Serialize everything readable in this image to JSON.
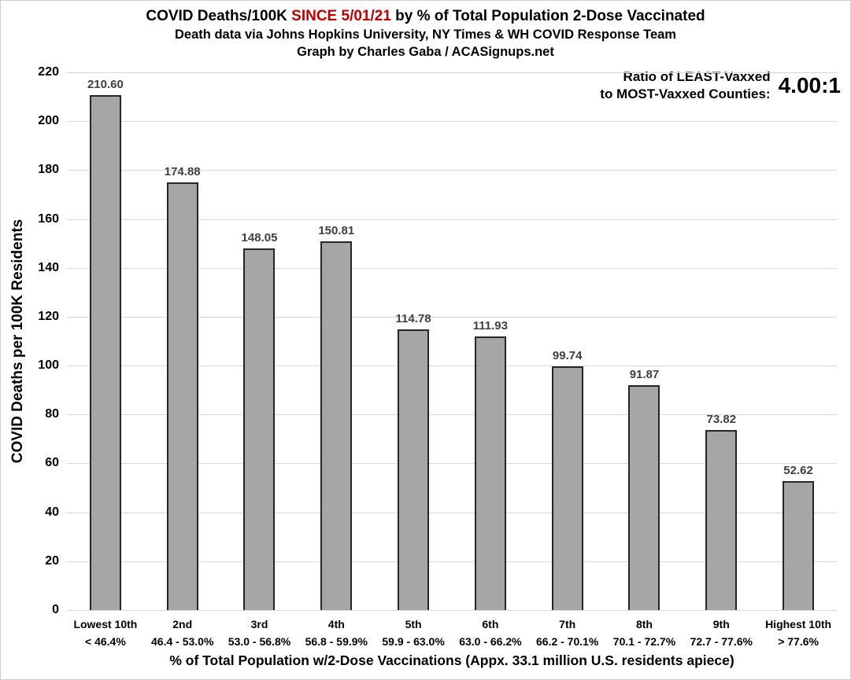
{
  "header": {
    "title_prefix": "COVID Deaths/100K ",
    "title_highlight": "SINCE 5/01/21",
    "title_suffix": " by % of Total Population 2-Dose Vaccinated",
    "subtitle1": "Death data via Johns Hopkins University, NY Times & WH COVID Response Team",
    "subtitle2": "Graph by Charles Gaba / ACASignups.net"
  },
  "ratio": {
    "label_line1": "Ratio of LEAST-Vaxxed",
    "label_line2": "to MOST-Vaxxed Counties:",
    "value": "4.00:1"
  },
  "colors": {
    "title_highlight_red": "#c00000",
    "bar_fill": "#a6a6a6",
    "bar_border": "#262626",
    "gridline": "#d9d9d9",
    "value_label": "#404040"
  },
  "chart_data": {
    "type": "bar",
    "title": "COVID Deaths/100K SINCE 5/01/21 by % of Total Population 2-Dose Vaccinated",
    "subtitle": "Death data via Johns Hopkins University, NY Times & WH COVID Response Team",
    "credit": "Graph by Charles Gaba / ACASignups.net",
    "annotation": "Ratio of LEAST-Vaxxed to MOST-Vaxxed Counties: 4.00:1",
    "categories": [
      "Lowest 10th",
      "2nd",
      "3rd",
      "4th",
      "5th",
      "6th",
      "7th",
      "8th",
      "9th",
      "Highest 10th"
    ],
    "category_ranges": [
      "< 46.4%",
      "46.4 - 53.0%",
      "53.0 - 56.8%",
      "56.8 - 59.9%",
      "59.9 - 63.0%",
      "63.0 - 66.2%",
      "66.2 - 70.1%",
      "70.1 - 72.7%",
      "72.7 - 77.6%",
      "> 77.6%"
    ],
    "values": [
      210.6,
      174.88,
      148.05,
      150.81,
      114.78,
      111.93,
      99.74,
      91.87,
      73.82,
      52.62
    ],
    "value_labels": [
      "210.60",
      "174.88",
      "148.05",
      "150.81",
      "114.78",
      "111.93",
      "99.74",
      "91.87",
      "73.82",
      "52.62"
    ],
    "xlabel": "% of Total Population w/2-Dose Vaccinations (Appx. 33.1 million U.S. residents apiece)",
    "ylabel": "COVID Deaths per 100K Residents",
    "ylim": [
      0,
      220
    ],
    "ytick_step": 20,
    "grid": true,
    "legend": false
  }
}
